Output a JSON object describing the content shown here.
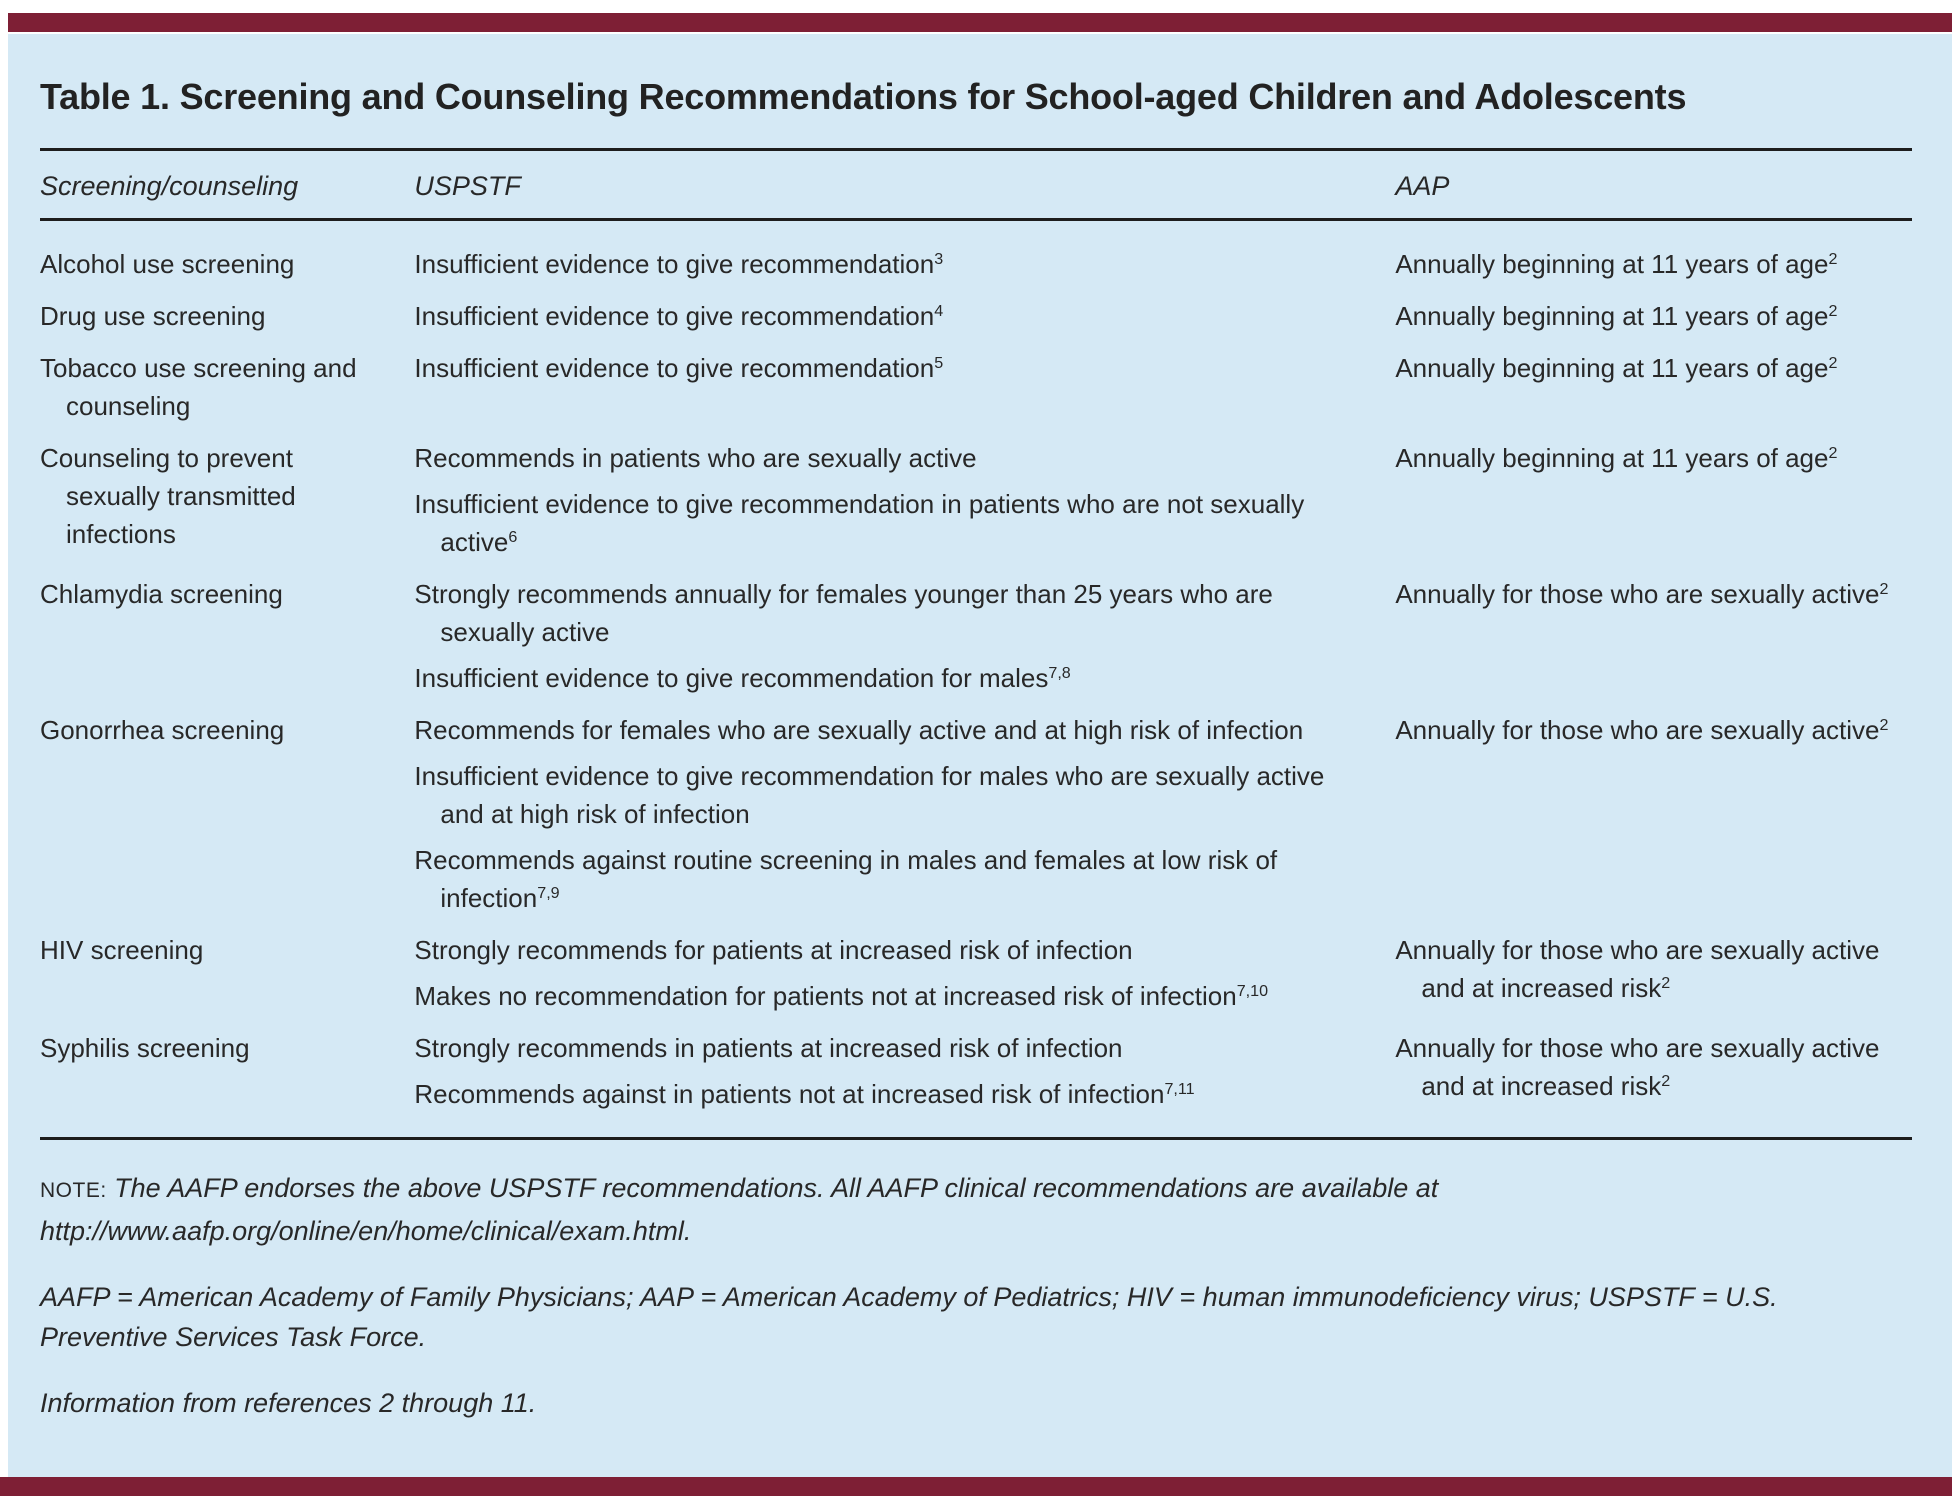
{
  "colors": {
    "accent_bar": "#7E1F35",
    "panel_background": "#D5E9F5",
    "text": "#282828"
  },
  "table": {
    "title": "Table 1. Screening and Counseling Recommendations for School-aged Children and Adolescents",
    "headers": {
      "col1": "Screening/counseling",
      "col2": "USPSTF",
      "col3": "AAP"
    },
    "rows": [
      {
        "label": "Alcohol use screening",
        "uspstf": [
          {
            "text": "Insufficient evidence to give recommendation",
            "sup": "3"
          }
        ],
        "aap": {
          "text": "Annually beginning at 11 years of age",
          "sup": "2"
        }
      },
      {
        "label": "Drug use screening",
        "uspstf": [
          {
            "text": "Insufficient evidence to give recommendation",
            "sup": "4"
          }
        ],
        "aap": {
          "text": "Annually beginning at 11 years of age",
          "sup": "2"
        }
      },
      {
        "label": "Tobacco use screening and counseling",
        "uspstf": [
          {
            "text": "Insufficient evidence to give recommendation",
            "sup": "5"
          }
        ],
        "aap": {
          "text": "Annually beginning at 11 years of age",
          "sup": "2"
        }
      },
      {
        "label": "Counseling to prevent sexually transmitted infections",
        "uspstf": [
          {
            "text": "Recommends in patients who are sexually active",
            "sup": ""
          },
          {
            "text": "Insufficient evidence to give recommendation in patients who are not sexually active",
            "sup": "6"
          }
        ],
        "aap": {
          "text": "Annually beginning at 11 years of age",
          "sup": "2"
        }
      },
      {
        "label": "Chlamydia screening",
        "uspstf": [
          {
            "text": "Strongly recommends annually for females younger than 25 years who are sexually active",
            "sup": ""
          },
          {
            "text": "Insufficient evidence to give recommendation for males",
            "sup": "7,8"
          }
        ],
        "aap": {
          "text": "Annually for those who are sexually active",
          "sup": "2"
        }
      },
      {
        "label": "Gonorrhea screening",
        "uspstf": [
          {
            "text": "Recommends for females who are sexually active and at high risk of infection",
            "sup": ""
          },
          {
            "text": "Insufficient evidence to give recommendation for males who are sexually active and at high risk of infection",
            "sup": ""
          },
          {
            "text": "Recommends against routine screening in males and females at low risk of infection",
            "sup": "7,9"
          }
        ],
        "aap": {
          "text": "Annually for those who are sexually active",
          "sup": "2"
        }
      },
      {
        "label": "HIV screening",
        "uspstf": [
          {
            "text": "Strongly recommends for patients at increased risk of infection",
            "sup": ""
          },
          {
            "text": "Makes no recommendation for patients not at increased risk of infection",
            "sup": "7,10"
          }
        ],
        "aap": {
          "text": "Annually for those who are sexually active and at increased risk",
          "sup": "2"
        }
      },
      {
        "label": "Syphilis screening",
        "uspstf": [
          {
            "text": "Strongly recommends in patients at increased risk of infection",
            "sup": ""
          },
          {
            "text": "Recommends against in patients not at increased risk of infection",
            "sup": "7,11"
          }
        ],
        "aap": {
          "text": "Annually for those who are sexually active and at increased risk",
          "sup": "2"
        }
      }
    ]
  },
  "footnotes": {
    "note_label": "NOTE:",
    "note_text": " The AAFP endorses the above USPSTF recommendations. All AAFP clinical recommendations are available at http://www.aafp.org/online/en/home/clinical/exam.html.",
    "abbreviations": "AAFP = American Academy of Family Physicians; AAP = American Academy of Pediatrics; HIV = human immunodeficiency virus; USPSTF = U.S. Preventive Services Task Force.",
    "source": "Information from references 2 through 11."
  }
}
